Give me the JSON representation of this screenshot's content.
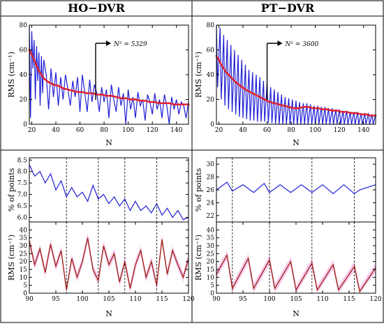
{
  "headers": {
    "left": "HO−DVR",
    "right": "PT−DVR"
  },
  "colors": {
    "blue": "#1f1fd6",
    "red": "#e0202a",
    "brown": "#a0281a",
    "pink": "#f7c8ef",
    "dash": "#000000"
  },
  "chart_data": [
    {
      "type": "line",
      "panel": "HO-DVR top",
      "xlabel": "N",
      "ylabel": "RMS (cm⁻¹)",
      "xlim": [
        18,
        150
      ],
      "ylim": [
        0,
        80
      ],
      "xticks": [
        20,
        40,
        60,
        80,
        100,
        120,
        140
      ],
      "yticks": [
        0,
        20,
        40,
        60,
        80
      ],
      "annotation": {
        "text": "N² = 5329",
        "x": 73
      },
      "series": [
        {
          "style": "blue",
          "x": [
            18,
            19,
            20,
            21,
            22,
            23,
            24,
            25,
            26,
            27,
            28,
            29,
            30,
            32,
            34,
            36,
            38,
            40,
            42,
            44,
            46,
            48,
            50,
            52,
            54,
            56,
            58,
            60,
            62,
            64,
            66,
            68,
            70,
            72,
            74,
            76,
            78,
            80,
            82,
            84,
            86,
            88,
            90,
            92,
            94,
            96,
            98,
            100,
            102,
            104,
            106,
            108,
            110,
            112,
            114,
            116,
            118,
            120,
            122,
            124,
            126,
            128,
            130,
            132,
            134,
            136,
            138,
            140,
            142,
            144,
            146,
            148,
            150
          ],
          "y": [
            80,
            5,
            75,
            45,
            68,
            20,
            63,
            35,
            58,
            15,
            55,
            25,
            52,
            40,
            12,
            45,
            22,
            42,
            15,
            38,
            20,
            40,
            28,
            15,
            35,
            22,
            38,
            10,
            40,
            25,
            10,
            36,
            18,
            32,
            25,
            10,
            30,
            18,
            28,
            5,
            32,
            20,
            10,
            30,
            15,
            25,
            0,
            28,
            12,
            22,
            5,
            26,
            15,
            20,
            3,
            24,
            18,
            8,
            25,
            12,
            20,
            5,
            24,
            15,
            0,
            22,
            12,
            20,
            8,
            18,
            15,
            5,
            18
          ]
        },
        {
          "style": "red",
          "x": [
            18,
            20,
            22,
            24,
            26,
            28,
            30,
            34,
            38,
            42,
            46,
            50,
            54,
            58,
            62,
            66,
            70,
            74,
            78,
            82,
            86,
            90,
            94,
            98,
            102,
            106,
            110,
            114,
            118,
            122,
            126,
            130,
            134,
            138,
            142,
            146,
            150
          ],
          "y": [
            60,
            56,
            52,
            47,
            43,
            40,
            37,
            34,
            32,
            31,
            29,
            28,
            27,
            26,
            26,
            25,
            25,
            24,
            24,
            23,
            23,
            22,
            21,
            21,
            20,
            20,
            19,
            19,
            18,
            18,
            17,
            17,
            17,
            16,
            16,
            16,
            16
          ]
        }
      ]
    },
    {
      "type": "line",
      "panel": "PT-DVR top",
      "xlabel": "N",
      "ylabel": "RMS (cm⁻¹)",
      "xlim": [
        18,
        150
      ],
      "ylim": [
        0,
        80
      ],
      "xticks": [
        20,
        40,
        60,
        80,
        100,
        120,
        140
      ],
      "yticks": [
        0,
        20,
        40,
        60,
        80
      ],
      "annotation": {
        "text": "N² = 3600",
        "x": 60
      },
      "series": [
        {
          "style": "blue",
          "x": [
            18,
            19,
            21,
            22,
            24,
            25,
            27,
            28,
            30,
            31,
            33,
            34,
            36,
            37,
            39,
            40,
            42,
            43,
            45,
            46,
            48,
            49,
            51,
            52,
            54,
            55,
            57,
            58,
            60,
            61,
            63,
            64,
            66,
            67,
            69,
            70,
            72,
            73,
            75,
            76,
            78,
            79,
            81,
            82,
            84,
            85,
            87,
            88,
            90,
            91,
            93,
            94,
            96,
            97,
            99,
            100,
            102,
            103,
            105,
            106,
            108,
            109,
            111,
            112,
            114,
            115,
            117,
            118,
            120,
            121,
            123,
            124,
            126,
            127,
            129,
            130,
            132,
            133,
            135,
            136,
            138,
            139,
            141,
            142,
            144,
            145,
            147,
            148,
            150
          ],
          "y": [
            80,
            30,
            78,
            20,
            72,
            15,
            68,
            12,
            64,
            10,
            60,
            8,
            56,
            6,
            52,
            5,
            48,
            4,
            44,
            3,
            42,
            3,
            40,
            2,
            38,
            2,
            35,
            2,
            33,
            1,
            30,
            1,
            28,
            0,
            26,
            0,
            24,
            0,
            22,
            0,
            21,
            0,
            20,
            0,
            19,
            0,
            18,
            0,
            17,
            0,
            17,
            0,
            16,
            0,
            15,
            0,
            15,
            0,
            14,
            0,
            14,
            0,
            13,
            0,
            13,
            0,
            12,
            0,
            12,
            0,
            11,
            0,
            11,
            0,
            10,
            0,
            10,
            0,
            10,
            0,
            9,
            0,
            9,
            0,
            9,
            0,
            8,
            0,
            8
          ]
        },
        {
          "style": "red",
          "x": [
            18,
            20,
            22,
            24,
            26,
            28,
            30,
            34,
            38,
            42,
            46,
            50,
            54,
            58,
            62,
            66,
            70,
            74,
            78,
            82,
            86,
            90,
            94,
            98,
            102,
            106,
            110,
            114,
            118,
            122,
            126,
            130,
            134,
            138,
            142,
            146,
            150
          ],
          "y": [
            55,
            52,
            48,
            45,
            42,
            40,
            38,
            34,
            31,
            28,
            26,
            24,
            22,
            20,
            18,
            17,
            16,
            15,
            14,
            13,
            13,
            14,
            14,
            13,
            13,
            12,
            12,
            11,
            11,
            10,
            10,
            9,
            9,
            8,
            8,
            7,
            7
          ]
        }
      ]
    },
    {
      "type": "line",
      "panel": "HO-DVR bottom upper",
      "ylabel": "% of points",
      "xlim": [
        90,
        120
      ],
      "ylim": [
        5.8,
        8.6
      ],
      "yticks": [
        6.0,
        6.5,
        7.0,
        7.5,
        8.0,
        8.5
      ],
      "vlines": [
        97,
        103,
        108,
        114
      ],
      "series": [
        {
          "style": "blue",
          "x": [
            90,
            91,
            92,
            93,
            94,
            95,
            96,
            97,
            98,
            99,
            100,
            101,
            102,
            103,
            104,
            105,
            106,
            107,
            108,
            109,
            110,
            111,
            112,
            113,
            114,
            115,
            116,
            117,
            118,
            119,
            120
          ],
          "y": [
            8.3,
            7.8,
            8.0,
            7.5,
            7.9,
            7.2,
            7.6,
            6.9,
            7.3,
            6.9,
            7.1,
            6.7,
            7.4,
            6.8,
            7.0,
            6.6,
            6.9,
            6.5,
            6.8,
            6.3,
            6.7,
            6.3,
            6.5,
            6.2,
            6.6,
            6.1,
            6.4,
            6.0,
            6.3,
            5.9,
            6.0
          ]
        }
      ]
    },
    {
      "type": "line",
      "panel": "HO-DVR bottom lower",
      "xlabel": "N",
      "ylabel": "RMS (cm⁻¹)",
      "xlim": [
        90,
        120
      ],
      "ylim": [
        0,
        45
      ],
      "xticks": [
        90,
        95,
        100,
        105,
        110,
        115,
        120
      ],
      "yticks": [
        0,
        5,
        10,
        15,
        20,
        25,
        30,
        35,
        40
      ],
      "vlines": [
        97,
        103,
        108,
        114
      ],
      "series": [
        {
          "style": "brown",
          "x": [
            90,
            91,
            92,
            93,
            94,
            95,
            96,
            97,
            98,
            99,
            100,
            101,
            102,
            103,
            104,
            105,
            106,
            107,
            108,
            109,
            110,
            111,
            112,
            113,
            114,
            115,
            116,
            117,
            118,
            119,
            120
          ],
          "y": [
            33,
            18,
            28,
            13,
            31,
            17,
            27,
            2,
            22,
            10,
            20,
            35,
            15,
            8,
            30,
            18,
            25,
            7,
            20,
            3,
            18,
            27,
            10,
            20,
            5,
            34,
            12,
            27,
            18,
            10,
            22
          ]
        }
      ]
    },
    {
      "type": "line",
      "panel": "PT-DVR bottom upper",
      "ylabel": "% of points",
      "xlim": [
        90,
        120
      ],
      "ylim": [
        21,
        31
      ],
      "yticks": [
        22,
        24,
        26,
        28,
        30
      ],
      "vlines": [
        93,
        100,
        108,
        116
      ],
      "series": [
        {
          "style": "blue",
          "x": [
            90,
            92,
            93,
            95,
            97,
            99,
            100,
            102,
            104,
            106,
            108,
            110,
            112,
            114,
            116,
            117,
            120
          ],
          "y": [
            26.0,
            27.2,
            25.8,
            26.8,
            25.6,
            27.0,
            25.6,
            26.8,
            25.6,
            26.8,
            25.6,
            26.8,
            25.4,
            26.8,
            25.4,
            26.0,
            26.8
          ]
        }
      ]
    },
    {
      "type": "line",
      "panel": "PT-DVR bottom lower",
      "xlabel": "N",
      "ylabel": "RMS (cm⁻¹)",
      "xlim": [
        90,
        120
      ],
      "ylim": [
        0,
        45
      ],
      "xticks": [
        90,
        95,
        100,
        105,
        110,
        115,
        120
      ],
      "yticks": [
        0,
        5,
        10,
        15,
        20,
        25,
        30,
        35,
        40
      ],
      "vlines": [
        93,
        100,
        108,
        116
      ],
      "series": [
        {
          "style": "brown",
          "x": [
            90,
            92,
            93,
            96,
            97,
            100,
            101,
            104,
            105,
            108,
            109,
            112,
            113,
            116,
            117,
            120
          ],
          "y": [
            12,
            24,
            3,
            22,
            3,
            21,
            3,
            20,
            2,
            19,
            2,
            18,
            2,
            17,
            1,
            16
          ]
        }
      ]
    }
  ]
}
